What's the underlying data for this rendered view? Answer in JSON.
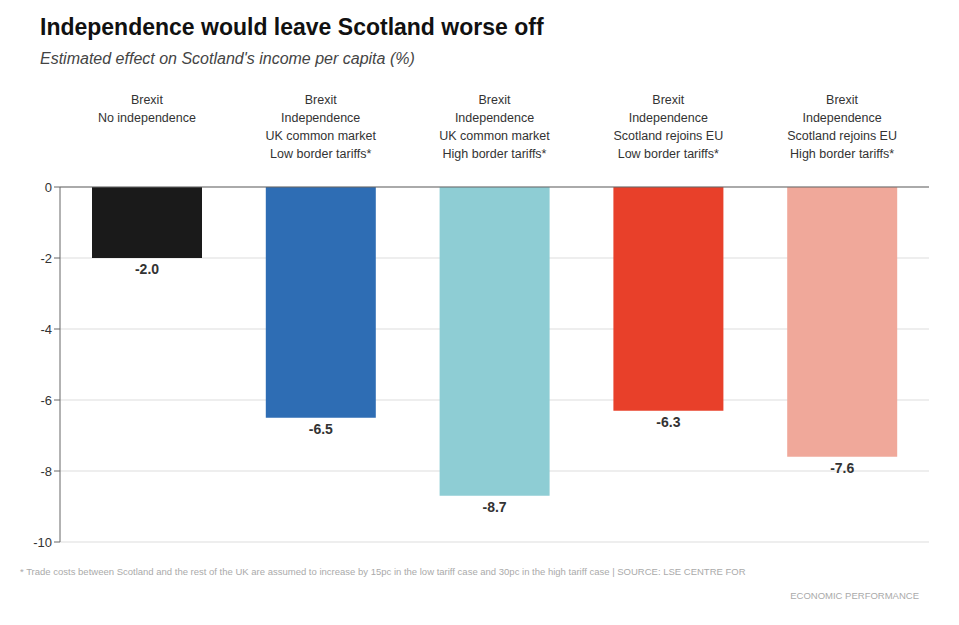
{
  "chart_data": {
    "type": "bar",
    "title": "Independence would leave Scotland worse off",
    "subtitle": "Estimated effect on Scotland's income per capita (%)",
    "annotations": [
      "* Trade costs between Scotland and the rest of the UK are assumed to increase by 15pc in the low tariff case and 30pc in the high tariff case | SOURCE: LSE CENTRE FOR",
      "ECONOMIC PERFORMANCE"
    ],
    "categories": [
      "Brexit\nNo independence",
      "Brexit\nIndependence\nUK common market\nLow border tariffs*",
      "Brexit\nIndependence\nUK common market\nHigh border tariffs*",
      "Brexit\nIndependence\nScotland rejoins EU\nLow border tariffs*",
      "Brexit\nIndependence\nScotland rejoins EU\nHigh border tariffs*"
    ],
    "values": [
      -2.0,
      -6.5,
      -8.7,
      -6.3,
      -7.6
    ],
    "value_labels": [
      "-2.0",
      "-6.5",
      "-8.7",
      "-6.3",
      "-7.6"
    ],
    "colors": [
      "#1a1a1a",
      "#2e6db4",
      "#8ecdd4",
      "#e8402a",
      "#f0a89a"
    ],
    "ylim": [
      -10,
      0
    ],
    "yticks": [
      0,
      -2,
      -4,
      -6,
      -8,
      -10
    ],
    "grid": true,
    "data_labels": true
  }
}
